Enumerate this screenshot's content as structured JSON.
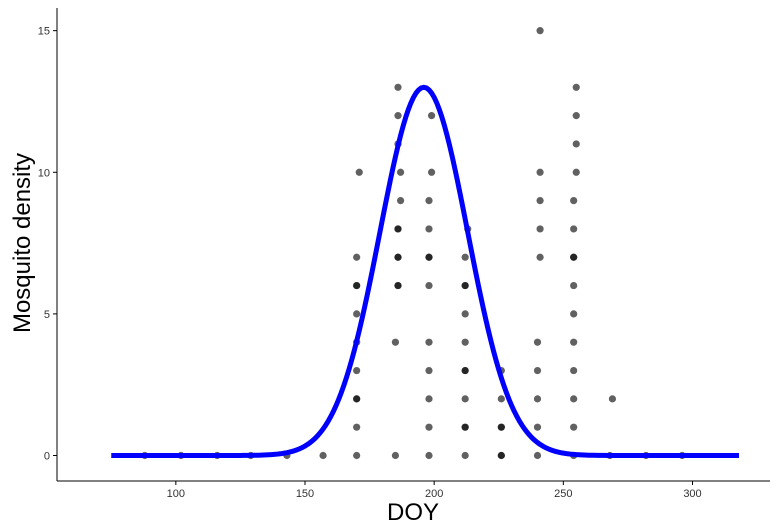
{
  "chart_data": {
    "type": "scatter",
    "xlabel": "DOY",
    "ylabel": "Mosquito density",
    "xlim": [
      54,
      330
    ],
    "ylim": [
      -0.9,
      15.8
    ],
    "x_ticks": [
      100,
      150,
      200,
      250,
      300
    ],
    "y_ticks": [
      0,
      5,
      10,
      15
    ],
    "grid": false,
    "legend": "none",
    "colors": {
      "points": "#000000",
      "curve": "#0000ff",
      "axis": "#000000"
    },
    "points": [
      [
        88,
        0
      ],
      [
        102,
        0
      ],
      [
        116,
        0
      ],
      [
        129,
        0
      ],
      [
        143,
        0
      ],
      [
        157,
        0
      ],
      [
        170,
        0
      ],
      [
        170,
        1
      ],
      [
        170,
        2
      ],
      [
        170,
        2
      ],
      [
        170,
        3
      ],
      [
        170,
        4
      ],
      [
        170,
        5
      ],
      [
        170,
        6
      ],
      [
        170,
        6
      ],
      [
        170,
        7
      ],
      [
        171,
        10
      ],
      [
        185,
        0
      ],
      [
        185,
        4
      ],
      [
        186,
        6
      ],
      [
        186,
        6
      ],
      [
        186,
        7
      ],
      [
        186,
        7
      ],
      [
        186,
        8
      ],
      [
        186,
        8
      ],
      [
        186,
        11
      ],
      [
        186,
        12
      ],
      [
        186,
        13
      ],
      [
        187,
        9
      ],
      [
        187,
        10
      ],
      [
        198,
        0
      ],
      [
        198,
        1
      ],
      [
        198,
        2
      ],
      [
        198,
        3
      ],
      [
        198,
        4
      ],
      [
        198,
        6
      ],
      [
        198,
        7
      ],
      [
        198,
        7
      ],
      [
        198,
        8
      ],
      [
        198,
        9
      ],
      [
        199,
        10
      ],
      [
        199,
        12
      ],
      [
        212,
        0
      ],
      [
        212,
        1
      ],
      [
        212,
        1
      ],
      [
        212,
        2
      ],
      [
        212,
        3
      ],
      [
        212,
        3
      ],
      [
        212,
        4
      ],
      [
        212,
        5
      ],
      [
        212,
        6
      ],
      [
        212,
        6
      ],
      [
        212,
        7
      ],
      [
        213,
        8
      ],
      [
        226,
        0
      ],
      [
        226,
        0
      ],
      [
        226,
        1
      ],
      [
        226,
        1
      ],
      [
        226,
        2
      ],
      [
        226,
        3
      ],
      [
        240,
        0
      ],
      [
        240,
        1
      ],
      [
        240,
        2
      ],
      [
        240,
        3
      ],
      [
        240,
        4
      ],
      [
        241,
        7
      ],
      [
        241,
        8
      ],
      [
        241,
        9
      ],
      [
        241,
        10
      ],
      [
        241,
        15
      ],
      [
        254,
        0
      ],
      [
        254,
        1
      ],
      [
        254,
        2
      ],
      [
        254,
        3
      ],
      [
        254,
        4
      ],
      [
        254,
        5
      ],
      [
        254,
        6
      ],
      [
        254,
        7
      ],
      [
        254,
        7
      ],
      [
        254,
        8
      ],
      [
        254,
        9
      ],
      [
        255,
        10
      ],
      [
        255,
        11
      ],
      [
        255,
        12
      ],
      [
        255,
        13
      ],
      [
        268,
        0
      ],
      [
        269,
        2
      ],
      [
        282,
        0
      ],
      [
        296,
        0
      ]
    ],
    "curve": {
      "type": "gaussian",
      "amplitude": 13,
      "center": 196,
      "sd": 17,
      "x_range": [
        75,
        318
      ]
    }
  }
}
